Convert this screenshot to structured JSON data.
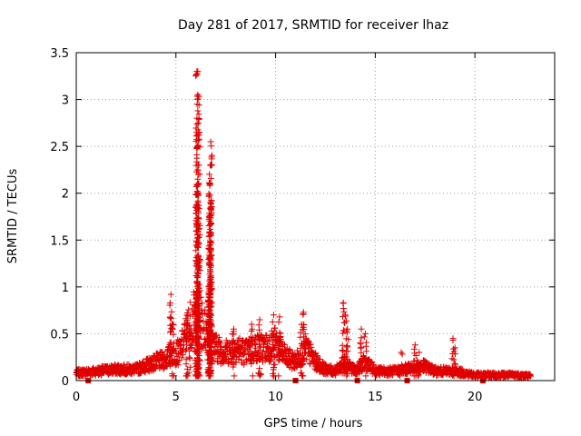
{
  "chart_data": {
    "type": "scatter",
    "title": "Day 281 of 2017, SRMTID for receiver lhaz",
    "xlabel": "GPS time / hours",
    "ylabel": "SRMTID / TECUs",
    "xlim": [
      0,
      24
    ],
    "ylim": [
      0,
      3.5
    ],
    "x_ticks": [
      0,
      5,
      10,
      15,
      20
    ],
    "y_ticks": [
      0,
      0.5,
      1,
      1.5,
      2,
      2.5,
      3,
      3.5
    ],
    "x_tick_labels": [
      "0",
      "5",
      "10",
      "15",
      "20"
    ],
    "y_tick_labels": [
      "0",
      "0.5",
      "1",
      "1.5",
      "2",
      "2.5",
      "3",
      "3.5"
    ],
    "grid": true,
    "marker": "plus",
    "color": "#e00000",
    "series": [
      {
        "baseline": [
          [
            0,
            0.08
          ],
          [
            1,
            0.1
          ],
          [
            2,
            0.12
          ],
          [
            3,
            0.12
          ],
          [
            3.5,
            0.16
          ],
          [
            4,
            0.2
          ],
          [
            4.5,
            0.22
          ],
          [
            4.8,
            0.3
          ],
          [
            5.2,
            0.3
          ],
          [
            5.6,
            0.55
          ],
          [
            6.0,
            0.7
          ],
          [
            6.3,
            0.6
          ],
          [
            6.6,
            0.5
          ],
          [
            7.0,
            0.35
          ],
          [
            7.5,
            0.3
          ],
          [
            8.0,
            0.35
          ],
          [
            8.5,
            0.3
          ],
          [
            9.0,
            0.35
          ],
          [
            9.5,
            0.35
          ],
          [
            10.0,
            0.4
          ],
          [
            10.5,
            0.25
          ],
          [
            11.0,
            0.2
          ],
          [
            11.5,
            0.35
          ],
          [
            12.0,
            0.2
          ],
          [
            12.5,
            0.12
          ],
          [
            13.0,
            0.1
          ],
          [
            13.5,
            0.2
          ],
          [
            14.0,
            0.1
          ],
          [
            14.5,
            0.2
          ],
          [
            15.0,
            0.1
          ],
          [
            16.0,
            0.1
          ],
          [
            16.5,
            0.12
          ],
          [
            17.0,
            0.15
          ],
          [
            17.5,
            0.15
          ],
          [
            18.0,
            0.1
          ],
          [
            19.0,
            0.1
          ],
          [
            19.5,
            0.08
          ],
          [
            20.0,
            0.06
          ],
          [
            21.0,
            0.06
          ],
          [
            22.0,
            0.06
          ],
          [
            22.8,
            0.05
          ]
        ],
        "spikes": [
          [
            4.75,
            0.92
          ],
          [
            4.85,
            0.6
          ],
          [
            5.55,
            0.7
          ],
          [
            5.7,
            0.55
          ],
          [
            6.05,
            3.3
          ],
          [
            6.1,
            3.05
          ],
          [
            6.15,
            2.8
          ],
          [
            6.08,
            2.5
          ],
          [
            6.12,
            2.2
          ],
          [
            6.06,
            1.85
          ],
          [
            6.1,
            1.45
          ],
          [
            6.08,
            1.1
          ],
          [
            6.0,
            0.8
          ],
          [
            6.75,
            2.55
          ],
          [
            6.72,
            2.3
          ],
          [
            6.7,
            2.1
          ],
          [
            6.73,
            1.9
          ],
          [
            6.7,
            1.7
          ],
          [
            6.72,
            1.45
          ],
          [
            6.7,
            1.25
          ],
          [
            6.65,
            1.0
          ],
          [
            6.62,
            0.85
          ],
          [
            7.9,
            0.55
          ],
          [
            8.8,
            0.6
          ],
          [
            9.2,
            0.65
          ],
          [
            9.9,
            0.7
          ],
          [
            10.2,
            0.68
          ],
          [
            11.4,
            0.73
          ],
          [
            11.3,
            0.6
          ],
          [
            13.4,
            0.83
          ],
          [
            13.5,
            0.7
          ],
          [
            13.6,
            0.55
          ],
          [
            14.3,
            0.55
          ],
          [
            14.5,
            0.5
          ],
          [
            16.3,
            0.3
          ],
          [
            17.0,
            0.38
          ],
          [
            17.2,
            0.3
          ],
          [
            18.9,
            0.45
          ],
          [
            19.0,
            0.35
          ]
        ],
        "low_markers": [
          [
            0.6,
            0.0
          ],
          [
            11.0,
            0.0
          ],
          [
            14.1,
            0.0
          ],
          [
            16.6,
            0.0
          ],
          [
            20.4,
            0.0
          ]
        ]
      }
    ]
  }
}
